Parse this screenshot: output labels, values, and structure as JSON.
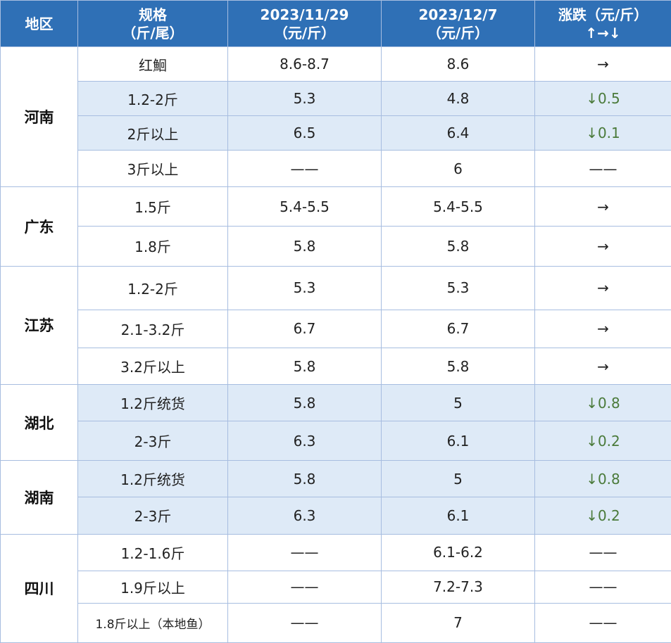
{
  "header": {
    "region": "地区",
    "spec_line1": "规格",
    "spec_line2": "（斤/尾）",
    "date1_line1": "2023/11/29",
    "date1_line2": "（元/斤）",
    "date2_line1": "2023/12/7",
    "date2_line2": "（元/斤）",
    "change_line1": "涨跌（元/斤）",
    "change_line2": "↑→↓"
  },
  "colors": {
    "header_bg": "#2f70b6",
    "shaded_row": "#deeaf7",
    "down_text": "#4a7a3a",
    "border": "#a7bde0"
  },
  "regions": [
    {
      "name": "河南",
      "rows": [
        {
          "spec": "红鮰",
          "p1": "8.6-8.7",
          "p2": "8.6",
          "change": "→",
          "shaded": false,
          "dir": "flat"
        },
        {
          "spec": "1.2-2斤",
          "p1": "5.3",
          "p2": "4.8",
          "change": "↓0.5",
          "shaded": true,
          "dir": "down"
        },
        {
          "spec": "2斤以上",
          "p1": "6.5",
          "p2": "6.4",
          "change": "↓0.1",
          "shaded": true,
          "dir": "down"
        },
        {
          "spec": "3斤以上",
          "p1": "——",
          "p2": "6",
          "change": "——",
          "shaded": false,
          "dir": "none"
        }
      ]
    },
    {
      "name": "广东",
      "rows": [
        {
          "spec": "1.5斤",
          "p1": "5.4-5.5",
          "p2": "5.4-5.5",
          "change": "→",
          "shaded": false,
          "dir": "flat"
        },
        {
          "spec": "1.8斤",
          "p1": "5.8",
          "p2": "5.8",
          "change": "→",
          "shaded": false,
          "dir": "flat"
        }
      ]
    },
    {
      "name": "江苏",
      "rows": [
        {
          "spec": "1.2-2斤",
          "p1": "5.3",
          "p2": "5.3",
          "change": "→",
          "shaded": false,
          "dir": "flat"
        },
        {
          "spec": "2.1-3.2斤",
          "p1": "6.7",
          "p2": "6.7",
          "change": "→",
          "shaded": false,
          "dir": "flat"
        },
        {
          "spec": "3.2斤以上",
          "p1": "5.8",
          "p2": "5.8",
          "change": "→",
          "shaded": false,
          "dir": "flat"
        }
      ]
    },
    {
      "name": "湖北",
      "rows": [
        {
          "spec": "1.2斤统货",
          "p1": "5.8",
          "p2": "5",
          "change": "↓0.8",
          "shaded": true,
          "dir": "down"
        },
        {
          "spec": "2-3斤",
          "p1": "6.3",
          "p2": "6.1",
          "change": "↓0.2",
          "shaded": true,
          "dir": "down"
        }
      ]
    },
    {
      "name": "湖南",
      "rows": [
        {
          "spec": "1.2斤统货",
          "p1": "5.8",
          "p2": "5",
          "change": "↓0.8",
          "shaded": true,
          "dir": "down"
        },
        {
          "spec": "2-3斤",
          "p1": "6.3",
          "p2": "6.1",
          "change": "↓0.2",
          "shaded": true,
          "dir": "down"
        }
      ]
    },
    {
      "name": "四川",
      "rows": [
        {
          "spec": "1.2-1.6斤",
          "p1": "——",
          "p2": "6.1-6.2",
          "change": "——",
          "shaded": false,
          "dir": "none"
        },
        {
          "spec": "1.9斤以上",
          "p1": "——",
          "p2": "7.2-7.3",
          "change": "——",
          "shaded": false,
          "dir": "none"
        },
        {
          "spec": "1.8斤以上（本地鱼）",
          "p1": "——",
          "p2": "7",
          "change": "——",
          "shaded": false,
          "dir": "none",
          "small": true
        }
      ]
    }
  ]
}
